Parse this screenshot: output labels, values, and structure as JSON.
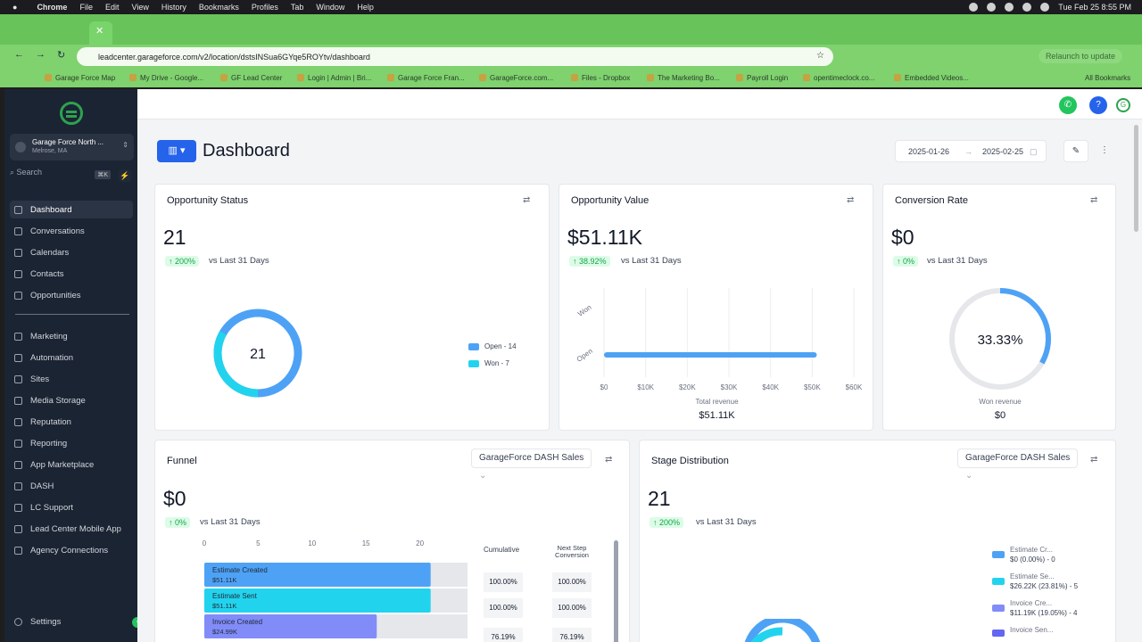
{
  "menubar": {
    "app": "Chrome",
    "items": [
      "File",
      "Edit",
      "View",
      "History",
      "Bookmarks",
      "Profiles",
      "Tab",
      "Window",
      "Help"
    ],
    "datetime": "Tue Feb 25  8:55 PM"
  },
  "browser": {
    "url": "leadcenter.garageforce.com/v2/location/dstsINSua6GYqe5ROYtv/dashboard",
    "relaunch": "Relaunch to update",
    "bookmarks": [
      "Garage Force Map",
      "My Drive - Google...",
      "GF Lead Center",
      "Login | Admin | Bri...",
      "Garage Force Fran...",
      "GarageForce.com...",
      "Files - Dropbox",
      "The Marketing Bo...",
      "Payroll Login",
      "opentimeclock.co...",
      "Embedded Videos..."
    ],
    "all_bookmarks": "All Bookmarks"
  },
  "sidebar": {
    "location_name": "Garage Force North ...",
    "location_sub": "Melrose, MA",
    "search_placeholder": "Search",
    "search_shortcut": "⌘K",
    "items_top": [
      "Dashboard",
      "Conversations",
      "Calendars",
      "Contacts",
      "Opportunities"
    ],
    "items_bottom": [
      "Marketing",
      "Automation",
      "Sites",
      "Media Storage",
      "Reputation",
      "Reporting",
      "App Marketplace",
      "DASH",
      "LC Support",
      "Lead Center Mobile App",
      "Agency Connections"
    ],
    "settings": "Settings"
  },
  "header": {
    "title": "Dashboard",
    "date_from": "2025-01-26",
    "date_to": "2025-02-25"
  },
  "opportunity_status": {
    "title": "Opportunity Status",
    "value": "21",
    "change": "↑ 200%",
    "vs": "vs Last 31 Days",
    "center": "21",
    "legend": [
      "Open - 14",
      "Won - 7"
    ]
  },
  "opportunity_value": {
    "title": "Opportunity Value",
    "value": "$51.11K",
    "change": "↑ 38.92%",
    "vs": "vs Last 31 Days",
    "ylabels": [
      "Won",
      "Open"
    ],
    "xticks": [
      "$0",
      "$10K",
      "$20K",
      "$30K",
      "$40K",
      "$50K",
      "$60K"
    ],
    "total_label": "Total revenue",
    "total_value": "$51.11K"
  },
  "conversion_rate": {
    "title": "Conversion Rate",
    "value": "$0",
    "change": "↑ 0%",
    "vs": "vs Last 31 Days",
    "gauge": "33.33%",
    "won_label": "Won revenue",
    "won_value": "$0"
  },
  "funnel": {
    "title": "Funnel",
    "pipeline": "GarageForce DASH Sales",
    "value": "$0",
    "change": "↑ 0%",
    "vs": "vs Last 31 Days",
    "xticks": [
      "0",
      "5",
      "10",
      "15",
      "20",
      "25"
    ],
    "col1": "Cumulative",
    "col2": "Next Step Conversion",
    "rows": [
      {
        "name": "Estimate Created",
        "amount": "$51.11K",
        "cum": "100.00%",
        "next": "100.00%"
      },
      {
        "name": "Estimate Sent",
        "amount": "$51.11K",
        "cum": "100.00%",
        "next": "100.00%"
      },
      {
        "name": "Invoice Created",
        "amount": "$24.99K",
        "cum": "76.19%",
        "next": "76.19%"
      }
    ]
  },
  "stage_distribution": {
    "title": "Stage Distribution",
    "pipeline": "GarageForce DASH Sales",
    "value": "21",
    "change": "↑ 200%",
    "vs": "vs Last 31 Days",
    "legend": [
      {
        "name": "Estimate Cr...",
        "detail": "$0 (0.00%) - 0"
      },
      {
        "name": "Estimate Se...",
        "detail": "$26.22K (23.81%) - 5"
      },
      {
        "name": "Invoice Cre...",
        "detail": "$11.19K (19.05%) - 4"
      },
      {
        "name": "Invoice Sen..."
      }
    ]
  },
  "chart_data": [
    {
      "type": "pie",
      "title": "Opportunity Status",
      "categories": [
        "Open",
        "Won"
      ],
      "values": [
        14,
        7
      ]
    },
    {
      "type": "bar",
      "title": "Opportunity Value",
      "categories": [
        "Won",
        "Open"
      ],
      "values": [
        0,
        51110
      ],
      "xlim": [
        0,
        60000
      ]
    },
    {
      "type": "bar",
      "title": "Funnel",
      "categories": [
        "Estimate Created",
        "Estimate Sent",
        "Invoice Created"
      ],
      "values": [
        21,
        21,
        16
      ],
      "xlim": [
        0,
        25
      ]
    }
  ],
  "colors": {
    "accent": "#2563eb",
    "teal": "#22d3ee",
    "blue": "#4ea2f5",
    "purple": "#818cf8",
    "green": "#22c55e"
  }
}
